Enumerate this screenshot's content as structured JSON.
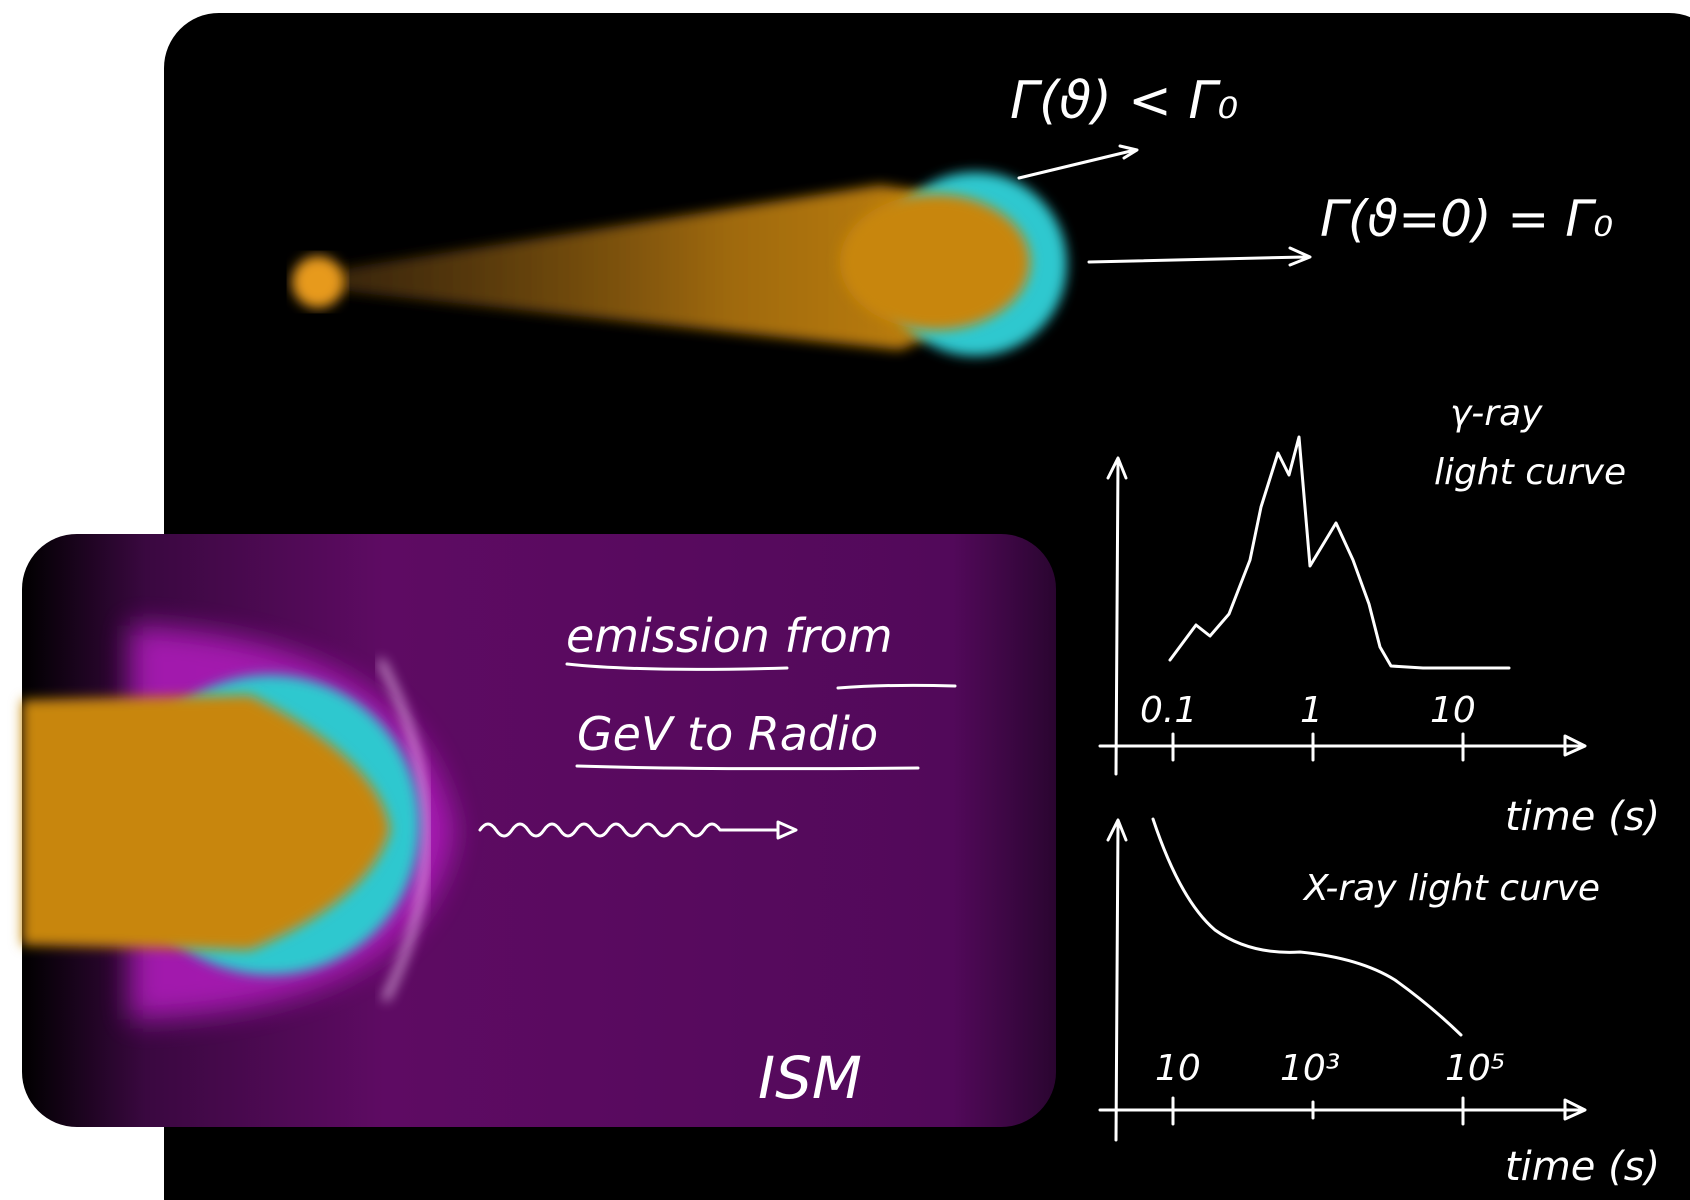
{
  "top_labels": {
    "off_axis": "Γ(ϑ) < Γ₀",
    "on_axis": "Γ(ϑ=0) = Γ₀"
  },
  "gamma_ray_plot": {
    "title": [
      "γ-ray",
      "light curve"
    ],
    "ticks": [
      "0.1",
      "1",
      "10"
    ],
    "x_label": "time (s)"
  },
  "x_ray_plot": {
    "title": "X-ray light curve",
    "ticks": [
      "10",
      "10³",
      "10⁵"
    ],
    "x_label": "time (s)"
  },
  "inset": {
    "caption": [
      "emission from",
      "GeV to Radio"
    ],
    "medium": "ISM"
  }
}
